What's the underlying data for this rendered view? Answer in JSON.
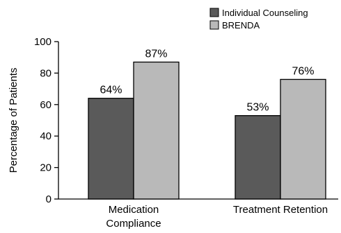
{
  "chart_data": {
    "type": "bar",
    "title": "",
    "xlabel": "",
    "ylabel": "Percentage of Patients",
    "ylim": [
      0,
      100
    ],
    "yticks": [
      0,
      20,
      40,
      60,
      80,
      100
    ],
    "grid": false,
    "legend_position": "top-right",
    "categories": [
      [
        "Medication",
        "Compliance"
      ],
      [
        "Treatment Retention"
      ]
    ],
    "series": [
      {
        "name": "Individual Counseling",
        "color": "#5a5a5a",
        "values": [
          64,
          53
        ],
        "labels": [
          "64%",
          "53%"
        ]
      },
      {
        "name": "BRENDA",
        "color": "#b9b9b9",
        "values": [
          87,
          76
        ],
        "labels": [
          "87%",
          "76%"
        ]
      }
    ]
  }
}
